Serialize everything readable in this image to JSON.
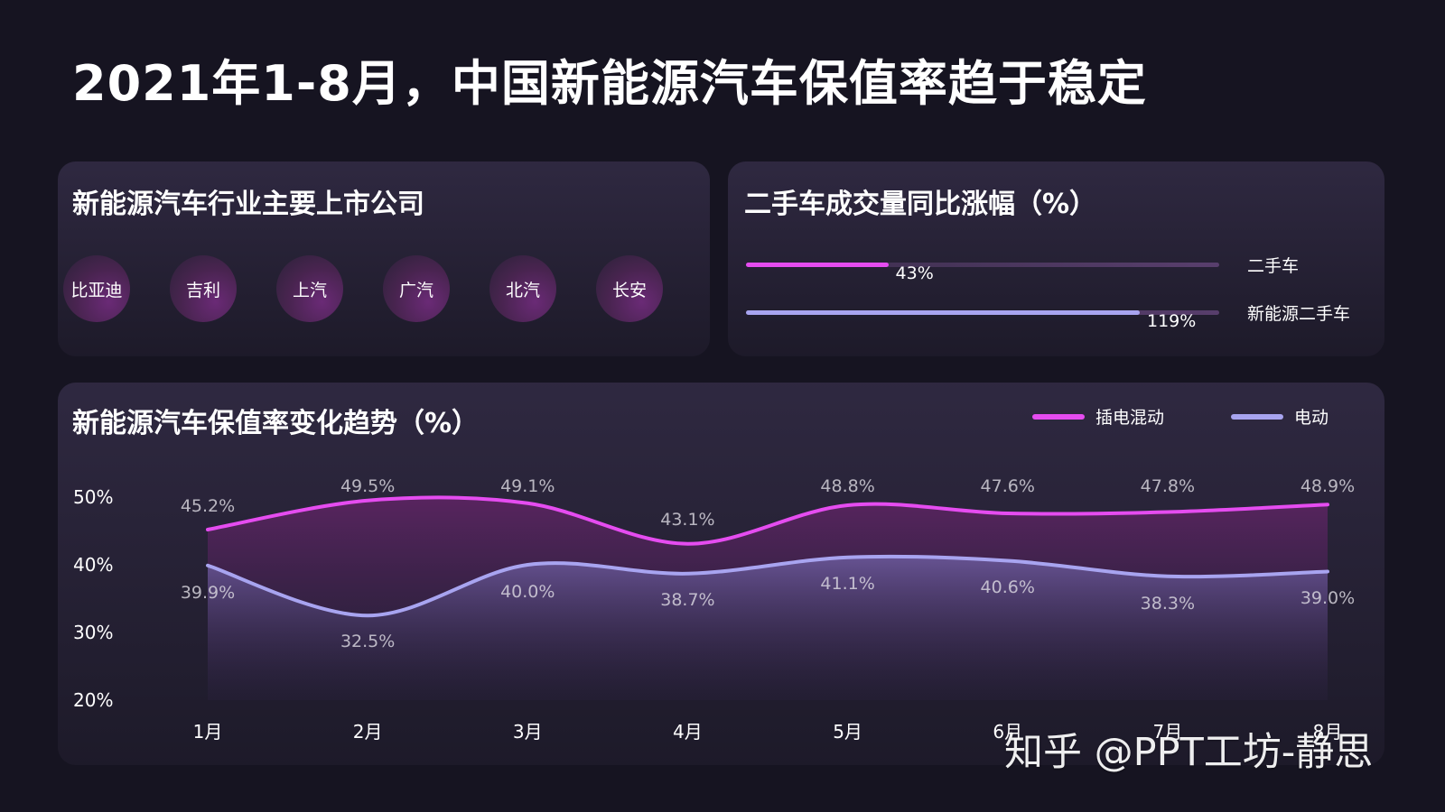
{
  "title": "2021年1-8月，中国新能源汽车保值率趋于稳定",
  "companies_panel": {
    "title": "新能源汽车行业主要上市公司",
    "companies": [
      "比亚迪",
      "吉利",
      "上汽",
      "广汽",
      "北汽",
      "长安"
    ]
  },
  "growth_panel": {
    "title": "二手车成交量同比涨幅（%）",
    "items": [
      {
        "label": "二手车",
        "value": 43,
        "value_text": "43%",
        "color": "#e54cf0"
      },
      {
        "label": "新能源二手车",
        "value": 119,
        "value_text": "119%",
        "color": "#a8a4f0"
      }
    ]
  },
  "chart_panel": {
    "title": "新能源汽车保值率变化趋势（%）",
    "legend": [
      {
        "label": "插电混动",
        "color": "#e54cf0"
      },
      {
        "label": "电动",
        "color": "#a8a4f0"
      }
    ]
  },
  "chart_data": {
    "type": "line",
    "categories": [
      "1月",
      "2月",
      "3月",
      "4月",
      "5月",
      "6月",
      "7月",
      "8月"
    ],
    "series": [
      {
        "name": "插电混动",
        "values": [
          45.2,
          49.5,
          49.1,
          43.1,
          48.8,
          47.6,
          47.8,
          48.9
        ],
        "labels": [
          "45.2%",
          "49.5%",
          "49.1%",
          "43.1%",
          "48.8%",
          "47.6%",
          "47.8%",
          "48.9%"
        ],
        "color": "#e54cf0"
      },
      {
        "name": "电动",
        "values": [
          39.9,
          32.5,
          40.0,
          38.7,
          41.1,
          40.6,
          38.3,
          39.0
        ],
        "labels": [
          "39.9%",
          "32.5%",
          "40.0%",
          "38.7%",
          "41.1%",
          "40.6%",
          "38.3%",
          "39.0%"
        ],
        "color": "#a8a4f0"
      }
    ],
    "ylim": [
      20,
      50
    ],
    "yticks": [
      "20%",
      "30%",
      "40%",
      "50%"
    ],
    "grid": false,
    "legend_position": "top-right"
  },
  "watermark": "知乎 @PPT工坊-静思"
}
